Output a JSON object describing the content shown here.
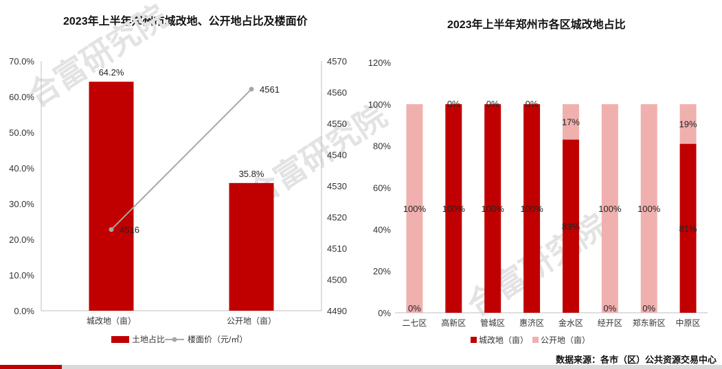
{
  "source_text": "数据来源：各市（区）公共资源交易中心",
  "watermark": "合富研究院",
  "colors": {
    "dark_red": "#c00000",
    "light_pink": "#f0b0ae",
    "line_gray": "#a6a6a6"
  },
  "chart_data": [
    {
      "type": "bar",
      "title": "2023年上半年郑州市城改地、公开地占比及楼面价",
      "categories": [
        "城改地（亩）",
        "公开地（亩）"
      ],
      "series": [
        {
          "name": "土地占比",
          "type": "bar",
          "values": [
            64.2,
            35.8
          ],
          "labels": [
            "64.2%",
            "35.8%"
          ],
          "axis": "left"
        },
        {
          "name": "楼面价（元/㎡）",
          "type": "line",
          "values": [
            4516,
            4561
          ],
          "labels": [
            "4516",
            "4561"
          ],
          "axis": "right"
        }
      ],
      "y_left": {
        "min": 0,
        "max": 70,
        "step": 10,
        "ticks": [
          "0.0%",
          "10.0%",
          "20.0%",
          "30.0%",
          "40.0%",
          "50.0%",
          "60.0%",
          "70.0%"
        ]
      },
      "y_right": {
        "min": 4490,
        "max": 4570,
        "step": 10,
        "ticks": [
          "4490",
          "4500",
          "4510",
          "4520",
          "4530",
          "4540",
          "4550",
          "4560",
          "4570"
        ]
      },
      "legend_position": "bottom"
    },
    {
      "type": "bar",
      "stacked": true,
      "title": "2023年上半年郑州市各区城改地占比",
      "categories": [
        "二七区",
        "高新区",
        "管城区",
        "惠济区",
        "金水区",
        "经开区",
        "郑东新区",
        "中原区"
      ],
      "series": [
        {
          "name": "城改地（亩）",
          "values": [
            0,
            100,
            100,
            100,
            83,
            0,
            0,
            81
          ],
          "labels": [
            "0%",
            "100%",
            "100%",
            "100%",
            "83%",
            "0%",
            "0%",
            "81%"
          ]
        },
        {
          "name": "公开地（亩）",
          "values": [
            100,
            0,
            0,
            0,
            17,
            100,
            100,
            19
          ],
          "labels": [
            "100%",
            "0%",
            "0%",
            "0%",
            "17%",
            "100%",
            "100%",
            "19%"
          ]
        }
      ],
      "y": {
        "min": 0,
        "max": 120,
        "step": 20,
        "ticks": [
          "0%",
          "20%",
          "40%",
          "60%",
          "80%",
          "100%",
          "120%"
        ]
      },
      "legend_position": "bottom"
    }
  ]
}
